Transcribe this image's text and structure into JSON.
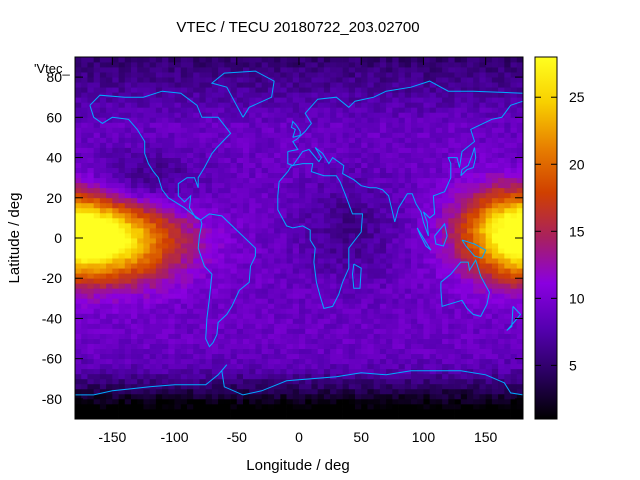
{
  "chart_data": {
    "type": "heatmap",
    "title": "VTEC / TECU 20180722_203.02700",
    "xlabel": "Longitude / deg",
    "ylabel": "Latitude / deg",
    "legend_entry": "'Vtec_",
    "xlim": [
      -180,
      180
    ],
    "ylim": [
      -90,
      90
    ],
    "x_ticks": [
      -150,
      -100,
      -50,
      0,
      50,
      100,
      150
    ],
    "y_ticks": [
      -80,
      -60,
      -40,
      -20,
      0,
      20,
      40,
      60,
      80
    ],
    "color_range": [
      1,
      28
    ],
    "colorbar_ticks": [
      5,
      10,
      15,
      20,
      25
    ],
    "colormap": [
      "#000000",
      "#2a0060",
      "#5500b0",
      "#8a00e0",
      "#a82060",
      "#d04000",
      "#e88000",
      "#f8d000",
      "#ffff20"
    ],
    "coastline_color": "#00aaff",
    "tec_features": [
      {
        "lon": -155,
        "lat": 0,
        "peak": 27.5,
        "sig_lon": 42,
        "sig_lat": 15
      },
      {
        "lon": 170,
        "lat": 5,
        "peak": 19,
        "sig_lon": 28,
        "sig_lat": 15
      },
      {
        "lon": -130,
        "lat": 25,
        "peak": 4,
        "sig_lon": 35,
        "sig_lat": 12
      }
    ],
    "background_level": 9
  }
}
